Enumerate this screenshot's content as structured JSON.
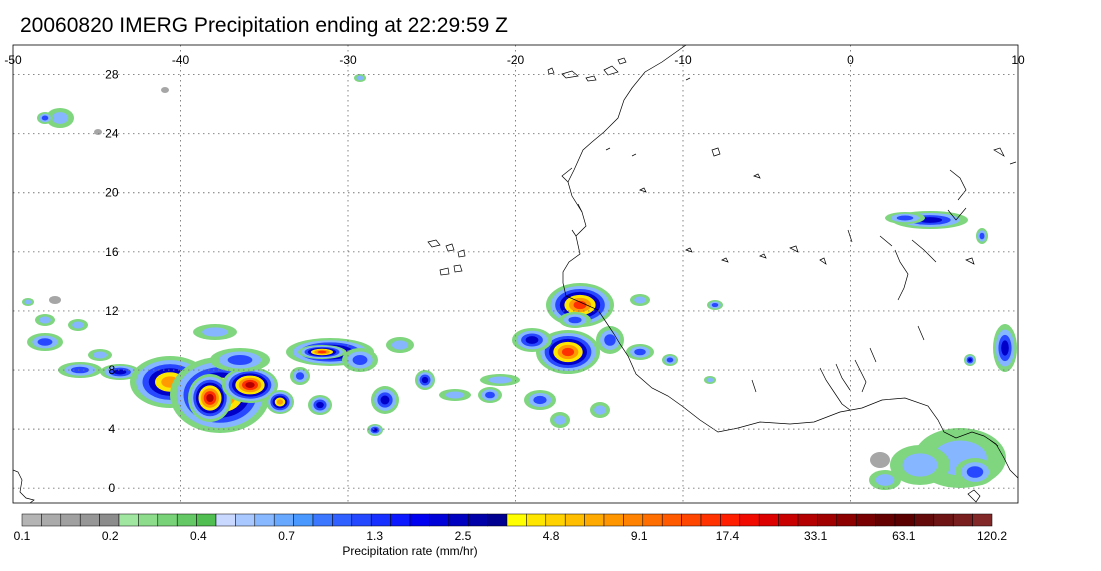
{
  "title": "20060820 IMERG Precipitation ending at 22:29:59 Z",
  "map": {
    "lon_range": [
      -50,
      10
    ],
    "lat_range": [
      -1,
      30
    ],
    "lon_ticks": [
      -50,
      -40,
      -30,
      -20,
      -10,
      0,
      10
    ],
    "lon_tick_labels": [
      "-50",
      "-40",
      "-30",
      "-20",
      "-10",
      "0",
      "10"
    ],
    "lat_ticks": [
      0,
      4,
      8,
      12,
      16,
      20,
      24,
      28
    ],
    "lat_tick_labels": [
      "0",
      "4",
      "8",
      "12",
      "16",
      "20",
      "24",
      "28"
    ],
    "grid": true
  },
  "colorbar": {
    "title": "Precipitation rate (mm/hr)",
    "labels": [
      "0.1",
      "0.2",
      "0.4",
      "0.7",
      "1.3",
      "2.5",
      "4.8",
      "9.1",
      "17.4",
      "33.1",
      "63.1",
      "120.2"
    ],
    "colors": [
      "#b4b4b4",
      "#aaaaaa",
      "#a0a0a0",
      "#969696",
      "#8c8c8c",
      "#a0e6a0",
      "#8cdc8c",
      "#78d278",
      "#64c864",
      "#50be50",
      "#c8d8ff",
      "#a8c8ff",
      "#88b8ff",
      "#68a8ff",
      "#4898ff",
      "#3c78ff",
      "#3060ff",
      "#2448ff",
      "#1830ff",
      "#0c18ff",
      "#0000f0",
      "#0000d8",
      "#0000c0",
      "#0000a8",
      "#000090",
      "#ffff00",
      "#ffe600",
      "#ffd200",
      "#ffbe00",
      "#ffaa00",
      "#ff9600",
      "#ff8200",
      "#ff6e00",
      "#ff5a00",
      "#ff4600",
      "#ff3200",
      "#ff1e00",
      "#f00a00",
      "#dc0000",
      "#c80000",
      "#b40000",
      "#a00000",
      "#8c0000",
      "#780000",
      "#640000",
      "#5a0000",
      "#640a0a",
      "#6e1414",
      "#781e1e",
      "#822828"
    ],
    "palette": {
      "gray": "#a6a6a6",
      "green": "#7fd67f",
      "lightblue": "#86b6ff",
      "blue": "#2848ff",
      "darkblue": "#0000c8",
      "yellow": "#ffe600",
      "orange": "#ff9a00",
      "red": "#ff3000",
      "darkred": "#b40000"
    }
  }
}
